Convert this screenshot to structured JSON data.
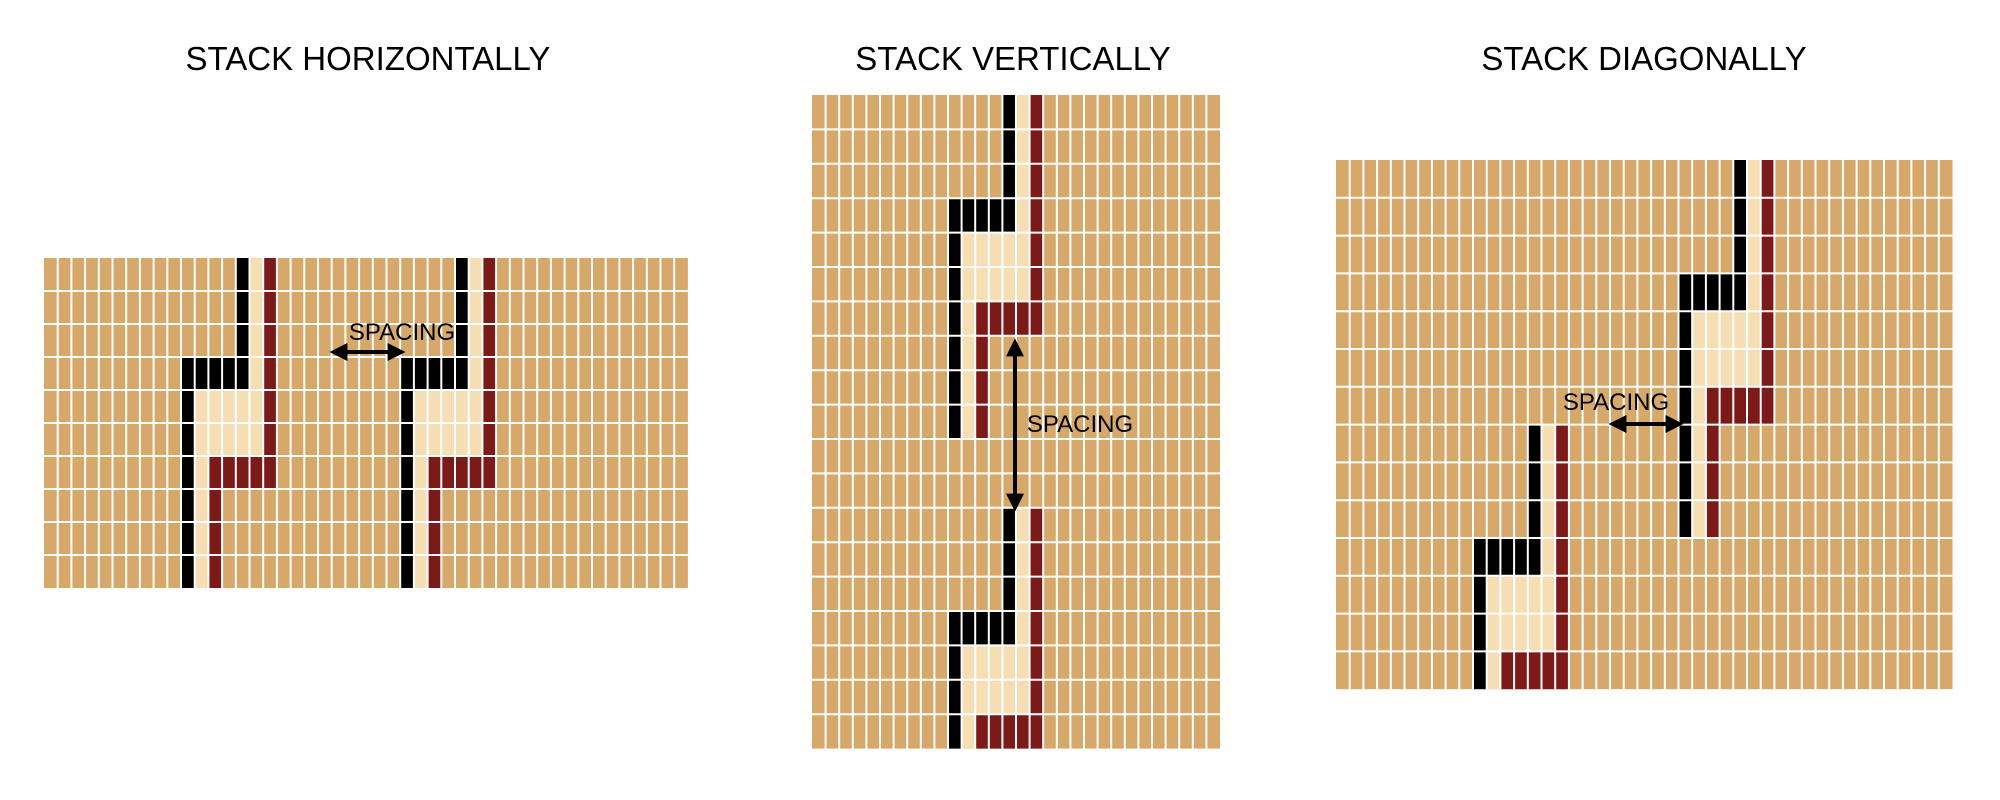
{
  "colors": {
    "background": "#d6a96b",
    "gridline": "#ffffff",
    "black_stripe": "#000000",
    "cream_stripe": "#f5deb3",
    "red_stripe": "#7b1a18"
  },
  "panels": [
    {
      "id": "horizontal",
      "title": "STACK HORIZONTALLY",
      "spacing_label": "SPACING",
      "motif_count": 2,
      "arrow": "horizontal"
    },
    {
      "id": "vertical",
      "title": "STACK VERTICALLY",
      "spacing_label": "SPACING",
      "motif_count": 2,
      "arrow": "vertical"
    },
    {
      "id": "diagonal",
      "title": "STACK DIAGONALLY",
      "spacing_label": "SPACING",
      "motif_count": 2,
      "arrow": "horizontal"
    }
  ]
}
